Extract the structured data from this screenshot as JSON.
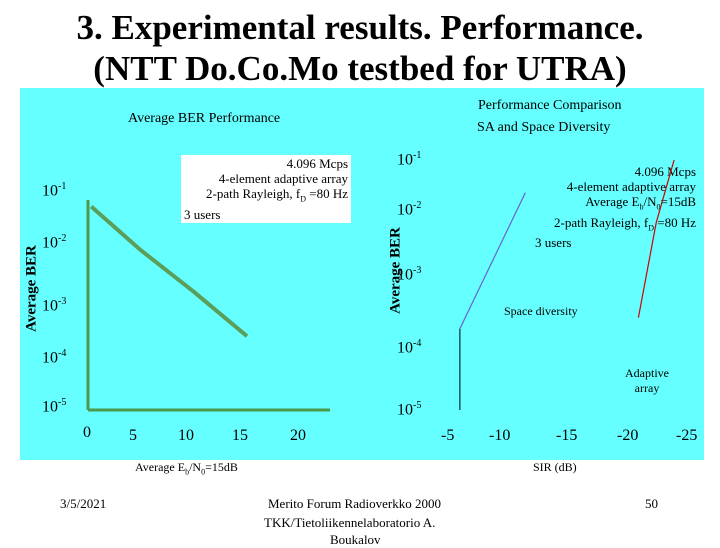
{
  "slide": {
    "title_line1": "3. Experimental results. Performance.",
    "title_line2": "(NTT Do.Co.Mo  testbed for UTRA)",
    "footer_date": "3/5/2021",
    "footer_center_line1": "Merito Forum Radioverkko 2000",
    "footer_center_line2": "TKK/Tietoliikennelaboratorio   A.",
    "footer_center_line3": "Boukalov",
    "page_number": "50"
  },
  "colors": {
    "panel_bg": "#66ffff",
    "curve_green": "#5a9e5a",
    "axis_green": "#4b9a4b",
    "space_diversity_curve": "#6666cc",
    "adaptive_array_curve": "#cc0000"
  },
  "chart_data": [
    {
      "type": "line",
      "title": "Average BER  Performance",
      "ylabel": "Average BER",
      "xlabel": "Average E",
      "xlabel_sub": "b",
      "xlabel_mid": "/N",
      "xlabel_sub2": "0",
      "xlabel_tail": "=15dB",
      "x_ticks": [
        "0",
        "5",
        "10",
        "15",
        "20"
      ],
      "y_ticks": [
        {
          "base": "10",
          "exp": "-1"
        },
        {
          "base": "10",
          "exp": "-2"
        },
        {
          "base": "10",
          "exp": "-3"
        },
        {
          "base": "10",
          "exp": "-4"
        },
        {
          "base": "10",
          "exp": "-5"
        }
      ],
      "y_scale": "log",
      "xlim": [
        0,
        20
      ],
      "ylim": [
        1e-05,
        0.1
      ],
      "series": [
        {
          "x": [
            0.3,
            5,
            10,
            15
          ],
          "y": [
            0.05,
            0.008,
            0.0014,
            0.00022
          ]
        }
      ],
      "legend_lines": [
        "4.096 Mcps",
        "4-element adaptive array",
        "2-path Rayleigh, f",
        "D",
        " =80 Hz",
        "3 users"
      ]
    },
    {
      "type": "line",
      "title_line1": "Performance Comparison",
      "title_line2": "SA and Space Diversity",
      "ylabel": "Average BER",
      "xlabel": "SIR (dB)",
      "x_ticks": [
        "-5",
        "-10",
        "-15",
        "-20",
        "-25"
      ],
      "y_ticks": [
        {
          "base": "10",
          "exp": "-1"
        },
        {
          "base": "10",
          "exp": "-2"
        },
        {
          "base": "10",
          "exp": "-3"
        },
        {
          "base": "10",
          "exp": "-4"
        },
        {
          "base": "10",
          "exp": "-5"
        }
      ],
      "y_scale": "log",
      "xlim": [
        -5,
        -25
      ],
      "ylim": [
        1e-05,
        0.1
      ],
      "series": [
        {
          "name": "Space diversity",
          "x": [
            -6,
            -11.5
          ],
          "y": [
            0.0002,
            0.03
          ]
        },
        {
          "name": "Adaptive array",
          "x": [
            -21,
            -22.5,
            -24
          ],
          "y": [
            0.0003,
            0.01,
            0.1
          ]
        }
      ],
      "legend_lines": [
        "4.096 Mcps",
        "4-element adaptive array",
        "Average E",
        "b",
        "/N",
        "0",
        "=15dB",
        "2-path Rayleigh, f",
        "D",
        " =80 Hz",
        "3 users"
      ]
    }
  ]
}
